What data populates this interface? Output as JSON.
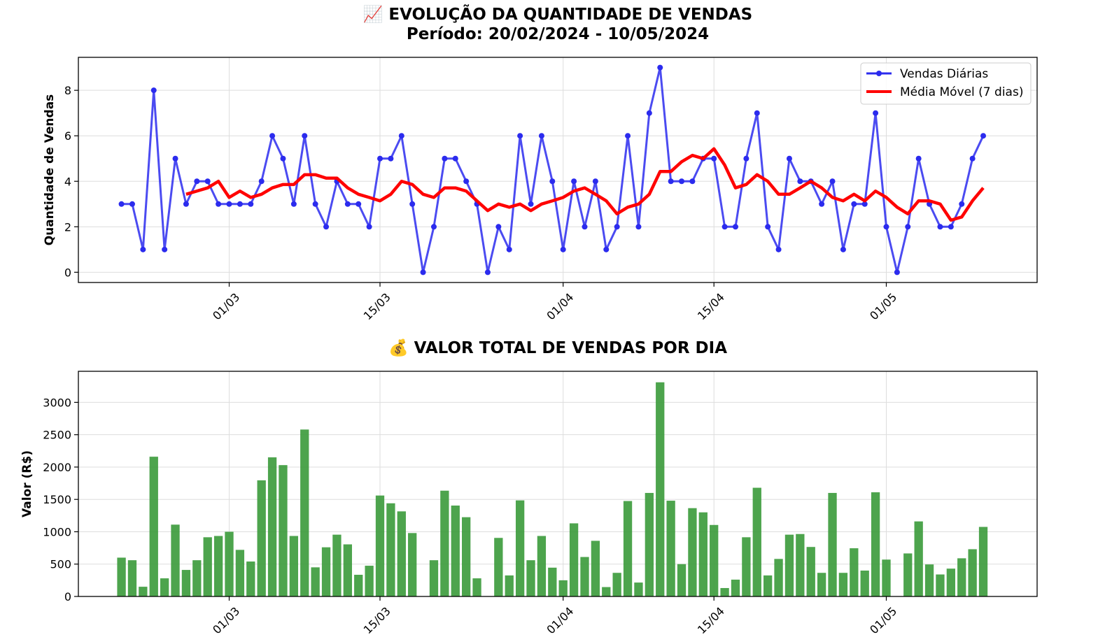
{
  "chart_data": [
    {
      "type": "line",
      "title": "📈 EVOLUÇÃO DA QUANTIDADE DE VENDAS",
      "subtitle": "Período: 20/02/2024 - 10/05/2024",
      "ylabel": "Quantidade de Vendas",
      "xlabel": "",
      "x_start": "2024-02-20",
      "x_end": "2024-05-10",
      "xlim": [
        "2024-02-16",
        "2024-05-15"
      ],
      "ylim": [
        -0.45,
        9.45
      ],
      "yticks": [
        0,
        2,
        4,
        6,
        8
      ],
      "xticks": [
        {
          "date": "2024-03-01",
          "label": "01/03"
        },
        {
          "date": "2024-03-15",
          "label": "15/03"
        },
        {
          "date": "2024-04-01",
          "label": "01/04"
        },
        {
          "date": "2024-04-15",
          "label": "15/04"
        },
        {
          "date": "2024-05-01",
          "label": "01/05"
        }
      ],
      "grid": true,
      "legend_position": "top-right",
      "series": [
        {
          "name": "Vendas Diárias",
          "color": "#2b2bee",
          "values": [
            3,
            3,
            1,
            8,
            1,
            5,
            3,
            4,
            4,
            3,
            3,
            3,
            3,
            4,
            6,
            5,
            3,
            6,
            3,
            2,
            4,
            3,
            3,
            2,
            5,
            5,
            6,
            3,
            0,
            2,
            5,
            5,
            4,
            3,
            0,
            2,
            1,
            6,
            3,
            6,
            4,
            1,
            4,
            2,
            4,
            1,
            2,
            6,
            2,
            7,
            9,
            4,
            4,
            4,
            5,
            5,
            2,
            2,
            5,
            7,
            2,
            1,
            5,
            4,
            4,
            3,
            4,
            1,
            3,
            3,
            7,
            2,
            0,
            2,
            5,
            3,
            2,
            2,
            3,
            5,
            6
          ]
        },
        {
          "name": "Média Móvel (7 dias)",
          "color": "#ff0000",
          "values": [
            null,
            null,
            null,
            null,
            null,
            null,
            3.43,
            3.57,
            3.71,
            4.0,
            3.29,
            3.57,
            3.29,
            3.43,
            3.71,
            3.86,
            3.86,
            4.29,
            4.29,
            4.14,
            4.14,
            3.71,
            3.43,
            3.29,
            3.14,
            3.43,
            4.0,
            3.86,
            3.43,
            3.29,
            3.71,
            3.71,
            3.57,
            3.14,
            2.71,
            3.0,
            2.86,
            3.0,
            2.71,
            3.0,
            3.14,
            3.29,
            3.57,
            3.71,
            3.43,
            3.14,
            2.57,
            2.86,
            3.0,
            3.43,
            4.43,
            4.43,
            4.86,
            5.14,
            5.0,
            5.43,
            4.71,
            3.71,
            3.86,
            4.29,
            4.0,
            3.43,
            3.43,
            3.71,
            4.0,
            3.71,
            3.29,
            3.14,
            3.43,
            3.14,
            3.57,
            3.29,
            2.86,
            2.57,
            3.14,
            3.14,
            3.0,
            2.29,
            2.43,
            3.14,
            3.71
          ]
        }
      ]
    },
    {
      "type": "bar",
      "title": "💰 VALOR TOTAL DE VENDAS POR DIA",
      "ylabel": "Valor (R$)",
      "xlabel": "",
      "x_start": "2024-02-20",
      "x_end": "2024-05-10",
      "xlim": [
        "2024-02-16",
        "2024-05-15"
      ],
      "ylim": [
        0,
        3480
      ],
      "yticks": [
        0,
        500,
        1000,
        1500,
        2000,
        2500,
        3000
      ],
      "xticks": [
        {
          "date": "2024-03-01",
          "label": "01/03"
        },
        {
          "date": "2024-03-15",
          "label": "15/03"
        },
        {
          "date": "2024-04-01",
          "label": "01/04"
        },
        {
          "date": "2024-04-15",
          "label": "15/04"
        },
        {
          "date": "2024-05-01",
          "label": "01/05"
        }
      ],
      "grid": true,
      "color": "#3a9a3a",
      "values": [
        600,
        560,
        150,
        2160,
        280,
        1110,
        410,
        560,
        915,
        935,
        1000,
        720,
        540,
        1795,
        2150,
        2030,
        935,
        2580,
        450,
        760,
        955,
        805,
        335,
        475,
        1560,
        1440,
        1315,
        980,
        0,
        560,
        1635,
        1405,
        1225,
        280,
        0,
        905,
        325,
        1485,
        560,
        935,
        445,
        250,
        1130,
        610,
        860,
        145,
        365,
        1475,
        215,
        1600,
        3310,
        1480,
        500,
        1365,
        1300,
        1105,
        130,
        260,
        915,
        1680,
        325,
        580,
        955,
        965,
        765,
        365,
        1600,
        365,
        745,
        400,
        1610,
        570,
        0,
        665,
        1160,
        495,
        340,
        430,
        590,
        730,
        1075
      ]
    }
  ]
}
